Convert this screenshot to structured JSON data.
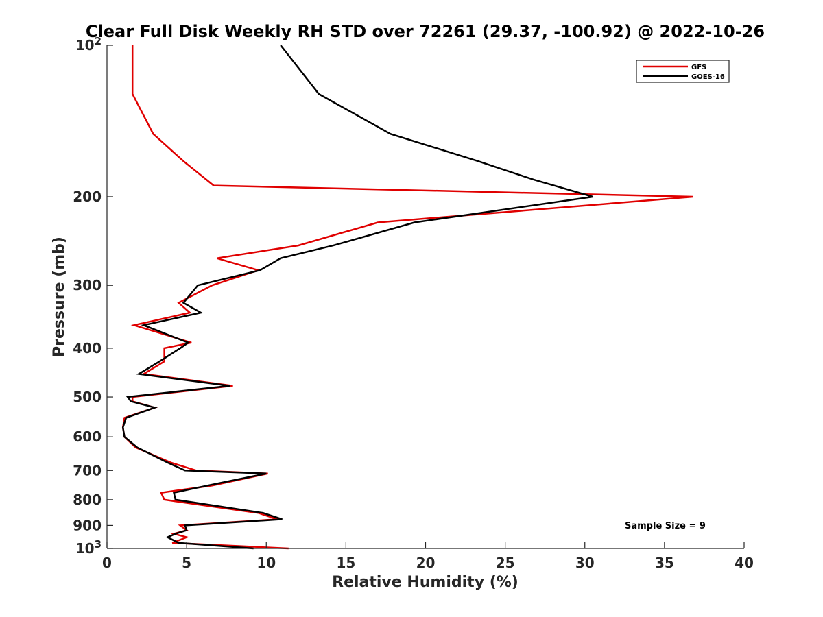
{
  "chart_data": {
    "type": "line",
    "title": "Clear Full Disk Weekly RH STD over 72261 (29.37, -100.92) @ 2022-10-26",
    "xlabel": "Relative Humidity (%)",
    "ylabel": "Pressure (mb)",
    "xlim": [
      0,
      40
    ],
    "ylim": [
      100,
      1000
    ],
    "yscale": "log",
    "y_reversed": true,
    "grid": false,
    "x_ticks": [
      "0",
      "5",
      "10",
      "15",
      "20",
      "25",
      "30",
      "35",
      "40"
    ],
    "y_ticks": [
      {
        "value": 100,
        "label": "10",
        "sup": "2"
      },
      {
        "value": 200,
        "label": "200",
        "sup": ""
      },
      {
        "value": 300,
        "label": "300",
        "sup": ""
      },
      {
        "value": 400,
        "label": "400",
        "sup": ""
      },
      {
        "value": 500,
        "label": "500",
        "sup": ""
      },
      {
        "value": 600,
        "label": "600",
        "sup": ""
      },
      {
        "value": 700,
        "label": "700",
        "sup": ""
      },
      {
        "value": 800,
        "label": "800",
        "sup": ""
      },
      {
        "value": 900,
        "label": "900",
        "sup": ""
      },
      {
        "value": 1000,
        "label": "10",
        "sup": "3"
      }
    ],
    "legend_position": "top-right",
    "annotation": "Sample Size = 9",
    "series": [
      {
        "name": "GFS",
        "color": "#e00000",
        "points": [
          [
            1.6,
            100
          ],
          [
            1.6,
            125
          ],
          [
            2.9,
            150
          ],
          [
            4.8,
            170
          ],
          [
            6.7,
            190
          ],
          [
            36.8,
            200
          ],
          [
            17.0,
            225
          ],
          [
            12.0,
            250
          ],
          [
            6.9,
            265
          ],
          [
            9.5,
            280
          ],
          [
            6.6,
            300
          ],
          [
            4.5,
            325
          ],
          [
            5.2,
            340
          ],
          [
            1.7,
            360
          ],
          [
            5.3,
            390
          ],
          [
            3.6,
            400
          ],
          [
            3.6,
            425
          ],
          [
            2.3,
            450
          ],
          [
            7.9,
            475
          ],
          [
            1.6,
            500
          ],
          [
            1.6,
            510
          ],
          [
            3.0,
            525
          ],
          [
            1.1,
            550
          ],
          [
            1.0,
            575
          ],
          [
            1.1,
            600
          ],
          [
            1.8,
            630
          ],
          [
            4.0,
            675
          ],
          [
            5.6,
            700
          ],
          [
            10.1,
            710
          ],
          [
            6.6,
            750
          ],
          [
            3.4,
            775
          ],
          [
            3.6,
            800
          ],
          [
            9.5,
            850
          ],
          [
            10.7,
            875
          ],
          [
            4.6,
            900
          ],
          [
            5.0,
            920
          ],
          [
            4.2,
            935
          ],
          [
            5.0,
            950
          ],
          [
            4.1,
            975
          ],
          [
            11.4,
            1000
          ]
        ]
      },
      {
        "name": "GOES-16",
        "color": "#000000",
        "points": [
          [
            10.9,
            100
          ],
          [
            13.3,
            125
          ],
          [
            17.8,
            150
          ],
          [
            23.3,
            170
          ],
          [
            26.8,
            185
          ],
          [
            30.5,
            200
          ],
          [
            19.3,
            225
          ],
          [
            14.2,
            250
          ],
          [
            10.9,
            265
          ],
          [
            9.6,
            280
          ],
          [
            5.7,
            300
          ],
          [
            4.8,
            325
          ],
          [
            5.9,
            340
          ],
          [
            2.3,
            360
          ],
          [
            5.1,
            390
          ],
          [
            4.6,
            400
          ],
          [
            3.3,
            425
          ],
          [
            2.0,
            450
          ],
          [
            7.7,
            475
          ],
          [
            1.3,
            500
          ],
          [
            1.5,
            510
          ],
          [
            3.0,
            525
          ],
          [
            1.2,
            550
          ],
          [
            1.0,
            575
          ],
          [
            1.1,
            600
          ],
          [
            1.9,
            630
          ],
          [
            3.8,
            675
          ],
          [
            4.9,
            700
          ],
          [
            10.0,
            710
          ],
          [
            6.3,
            750
          ],
          [
            4.2,
            775
          ],
          [
            4.3,
            800
          ],
          [
            9.8,
            850
          ],
          [
            11.0,
            875
          ],
          [
            4.9,
            900
          ],
          [
            5.0,
            920
          ],
          [
            4.3,
            935
          ],
          [
            3.8,
            950
          ],
          [
            4.5,
            975
          ],
          [
            9.2,
            1000
          ]
        ]
      }
    ]
  }
}
